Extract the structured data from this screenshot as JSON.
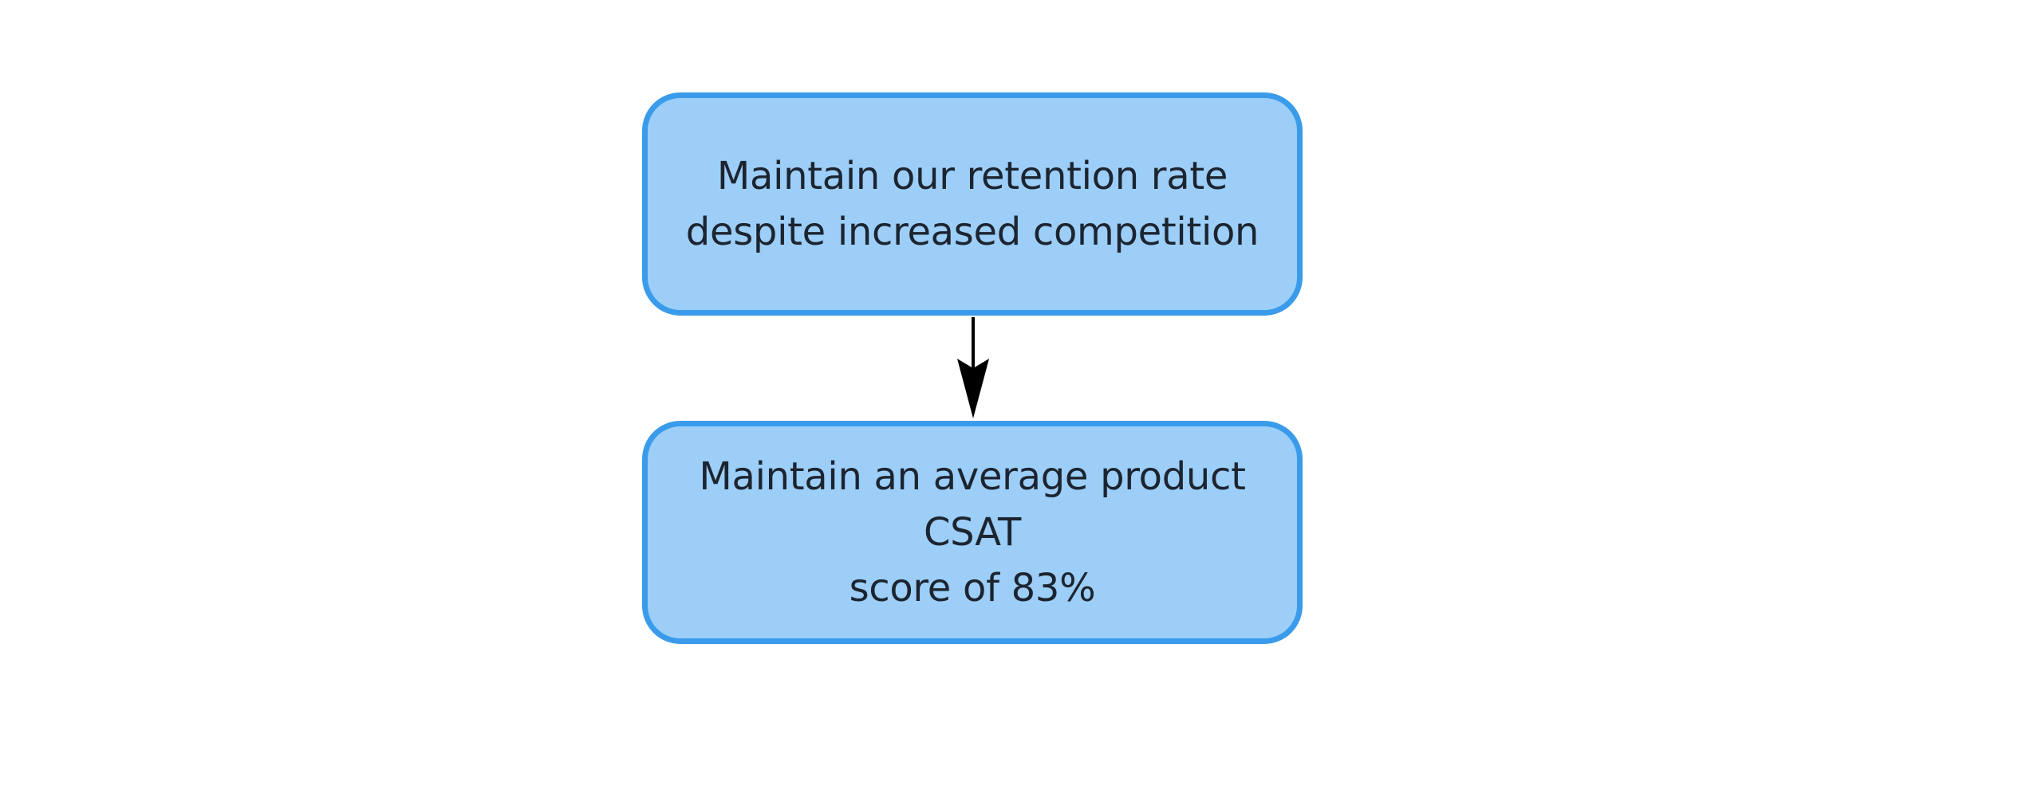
{
  "diagram": {
    "type": "flowchart",
    "colors": {
      "node_fill": "#9ccef7",
      "node_border": "#3a9bea",
      "text": "#1c2430",
      "arrow": "#000000",
      "background": "#ffffff"
    },
    "nodes": [
      {
        "id": "retention",
        "lines": [
          "Maintain our retention rate",
          "despite increased competition"
        ]
      },
      {
        "id": "csat",
        "lines": [
          "Maintain an average product CSAT",
          "score of 83%"
        ]
      }
    ],
    "edges": [
      {
        "from": "retention",
        "to": "csat"
      }
    ]
  }
}
